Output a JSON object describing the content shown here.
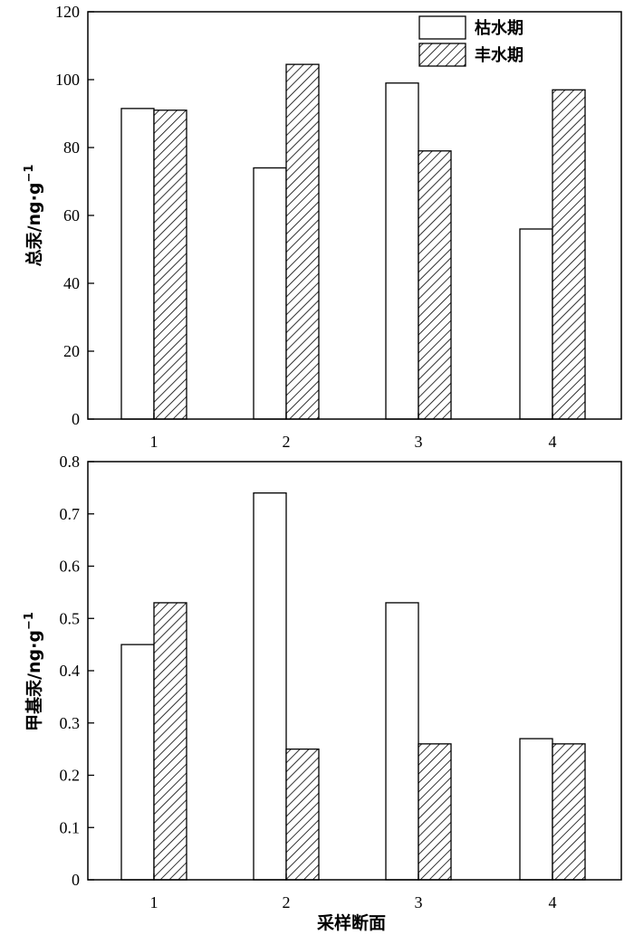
{
  "chart_data": [
    {
      "type": "bar",
      "categories": [
        "1",
        "2",
        "3",
        "4"
      ],
      "series": [
        {
          "name": "枯水期",
          "values": [
            91.5,
            74.0,
            99.0,
            56.0
          ]
        },
        {
          "name": "丰水期",
          "values": [
            91.0,
            104.5,
            79.0,
            97.0
          ]
        }
      ],
      "ylabel": "总汞/ng·g",
      "ylabel_superscript": "−1",
      "xlabel": "",
      "ylim": [
        0,
        120
      ],
      "yticks": [
        "0",
        "20",
        "40",
        "60",
        "80",
        "100",
        "120"
      ],
      "legend": "top-right",
      "series_style": {
        "枯水期": "plain white",
        "丰水期": "diagonal hatch"
      }
    },
    {
      "type": "bar",
      "categories": [
        "1",
        "2",
        "3",
        "4"
      ],
      "series": [
        {
          "name": "枯水期",
          "values": [
            0.45,
            0.74,
            0.53,
            0.27
          ]
        },
        {
          "name": "丰水期",
          "values": [
            0.53,
            0.25,
            0.26,
            0.26
          ]
        }
      ],
      "ylabel": "甲基汞/ng·g",
      "ylabel_superscript": "−1",
      "xlabel": "采样断面",
      "ylim": [
        0,
        0.8
      ],
      "yticks": [
        "0",
        "0.1",
        "0.2",
        "0.3",
        "0.4",
        "0.5",
        "0.6",
        "0.7",
        "0.8"
      ]
    }
  ],
  "colors": {
    "axis": "#000000",
    "bar_fill": "#ffffff",
    "hatch": "#000000"
  }
}
